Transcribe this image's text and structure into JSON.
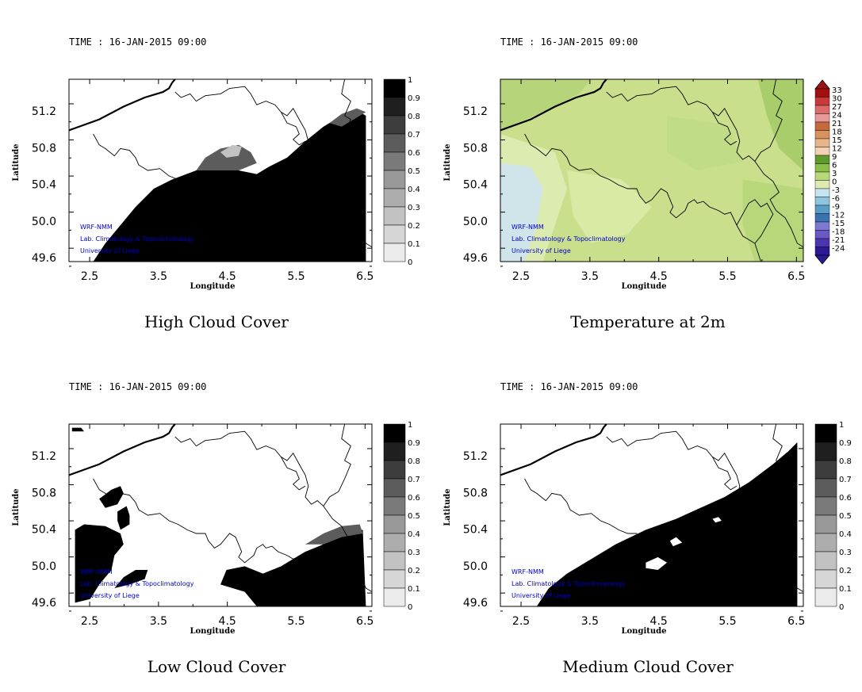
{
  "panels": [
    {
      "kind": "cloud",
      "field": "high",
      "time_label": "TIME : 16-JAN-2015 09:00",
      "title": "High Cloud Cover",
      "xlabel": "Longitude",
      "ylabel": "Latitude",
      "x_ticks": [
        "2.5",
        "3.5",
        "4.5",
        "5.5",
        "6.5"
      ],
      "y_ticks": [
        "51.2",
        "50.8",
        "50.4",
        "50.0",
        "49.6"
      ],
      "colorbar_labels": [
        "1",
        "0.9",
        "0.8",
        "0.7",
        "0.6",
        "0.5",
        "0.4",
        "0.3",
        "0.2",
        "0.1",
        "0"
      ],
      "credits": [
        "WRF-NMM",
        "Lab. Climatology & Topoclimatology",
        "University of Liege"
      ]
    },
    {
      "kind": "temperature",
      "field": "t2m",
      "time_label": "TIME : 16-JAN-2015 09:00",
      "title": "Temperature at 2m",
      "xlabel": "Longitude",
      "ylabel": "Latitude",
      "x_ticks": [
        "2.5",
        "3.5",
        "4.5",
        "5.5",
        "6.5"
      ],
      "y_ticks": [
        "51.2",
        "50.8",
        "50.4",
        "50.0",
        "49.6"
      ],
      "colorbar_labels": [
        "33",
        "30",
        "27",
        "24",
        "21",
        "18",
        "15",
        "12",
        "9",
        "6",
        "3",
        "0",
        "-3",
        "-6",
        "-9",
        "-12",
        "-15",
        "-18",
        "-21",
        "-24"
      ],
      "credits": [
        "WRF-NMM",
        "Lab. Climatology & Topoclimatology",
        "University of Liege"
      ]
    },
    {
      "kind": "cloud",
      "field": "low",
      "time_label": "TIME : 16-JAN-2015 09:00",
      "title": "Low Cloud Cover",
      "xlabel": "Longitude",
      "ylabel": "Latitude",
      "x_ticks": [
        "2.5",
        "3.5",
        "4.5",
        "5.5",
        "6.5"
      ],
      "y_ticks": [
        "51.2",
        "50.8",
        "50.4",
        "50.0",
        "49.6"
      ],
      "colorbar_labels": [
        "1",
        "0.9",
        "0.8",
        "0.7",
        "0.6",
        "0.5",
        "0.4",
        "0.3",
        "0.2",
        "0.1",
        "0"
      ],
      "credits": [
        "WRF-NMM",
        "Lab. Climatology & Topoclimatology",
        "University of Liege"
      ]
    },
    {
      "kind": "cloud",
      "field": "medium",
      "time_label": "TIME : 16-JAN-2015 09:00",
      "title": "Medium Cloud Cover",
      "xlabel": "Longitude",
      "ylabel": "Latitude",
      "x_ticks": [
        "2.5",
        "3.5",
        "4.5",
        "5.5",
        "6.5"
      ],
      "y_ticks": [
        "51.2",
        "50.8",
        "50.4",
        "50.0",
        "49.6"
      ],
      "colorbar_labels": [
        "1",
        "0.9",
        "0.8",
        "0.7",
        "0.6",
        "0.5",
        "0.4",
        "0.3",
        "0.2",
        "0.1",
        "0"
      ],
      "credits": [
        "WRF-NMM",
        "Lab. Climatology & Topoclimatology",
        "University of Liege"
      ]
    }
  ],
  "colors": {
    "cloud_scale": [
      "#ffffff",
      "#ebebeb",
      "#d6d6d6",
      "#c2c2c2",
      "#adadad",
      "#999999",
      "#7a7a7a",
      "#5c5c5c",
      "#3d3d3d",
      "#1f1f1f",
      "#000000"
    ],
    "temp_scale_top_to_bottom": [
      "#a01010",
      "#c83a3a",
      "#dc6b6b",
      "#e89a9a",
      "#c46a3c",
      "#d9925e",
      "#e8b58a",
      "#f2d1b4",
      "#5e9a2c",
      "#8cbf4a",
      "#b8d87a",
      "#dcecb0",
      "#c8e4ee",
      "#8fc4de",
      "#5a9ec8",
      "#3b73b0",
      "#7c7ad0",
      "#6a58c4",
      "#4b36b0",
      "#2a1a94"
    ],
    "credits": "#0000cc",
    "border": "#000000",
    "temperature_field": "#c9df8c"
  }
}
